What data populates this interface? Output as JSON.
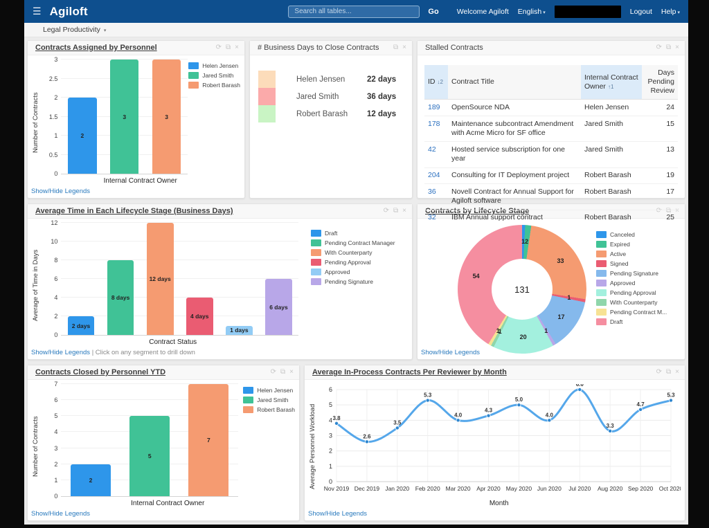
{
  "icons": {
    "menu": "☰",
    "caret": "▾",
    "refresh": "⟳",
    "popout": "⧉",
    "close": "×"
  },
  "header": {
    "brand": "Agiloft",
    "search_placeholder": "Search all tables...",
    "go": "Go",
    "welcome": "Welcome Agiloft",
    "language": "English",
    "logout": "Logout",
    "help": "Help",
    "bar_color": "#0e4f8e"
  },
  "breadcrumb": {
    "label": "Legal Productivity"
  },
  "links": {
    "show_hide": "Show/Hide Legends"
  },
  "panels": {
    "assigned": {
      "title": "Contracts Assigned by Personnel",
      "chart_data": {
        "type": "bar",
        "categories": [
          "Helen Jensen",
          "Jared Smith",
          "Robert Barash"
        ],
        "values": [
          2,
          3,
          3
        ],
        "bar_labels": [
          "2",
          "3",
          "3"
        ],
        "colors": [
          "#2e96ea",
          "#40c296",
          "#f59b71"
        ],
        "ylabel": "Number of Contracts",
        "xlabel": "Internal Contract Owner",
        "ylim": [
          0,
          3
        ],
        "ytick_step": 0.5,
        "legend": [
          "Helen Jensen",
          "Jared Smith",
          "Robert Barash"
        ],
        "legend_position": "inside-top-right"
      }
    },
    "business_days": {
      "title": "# Business Days to Close Contracts",
      "rows": [
        {
          "label": "Helen Jensen",
          "value": "22 days",
          "color": "#fcdcba"
        },
        {
          "label": "Jared Smith",
          "value": "36 days",
          "color": "#fbaaaa"
        },
        {
          "label": "Robert Barash",
          "value": "12 days",
          "color": "#c9f4c4"
        }
      ]
    },
    "stalled": {
      "title": "Stalled Contracts",
      "table": {
        "columns": [
          {
            "label": "ID",
            "sort_badge": "↓2",
            "sorted": true
          },
          {
            "label": "Contract Title",
            "sort_badge": "",
            "sorted": false
          },
          {
            "label": "Internal Contract Owner",
            "sort_badge": "↑1",
            "sorted": true
          },
          {
            "label": "Days Pending Review",
            "sort_badge": "",
            "sorted": false
          }
        ],
        "rows": [
          {
            "id": "189",
            "title": "OpenSource NDA",
            "owner": "Helen Jensen",
            "days": "24"
          },
          {
            "id": "178",
            "title": "Maintenance subcontract Amendment with Acme Micro for SF office",
            "owner": "Jared Smith",
            "days": "15"
          },
          {
            "id": "42",
            "title": "Hosted service subscription for one year",
            "owner": "Jared Smith",
            "days": "13"
          },
          {
            "id": "204",
            "title": "Consulting for IT Deployment project",
            "owner": "Robert Barash",
            "days": "19"
          },
          {
            "id": "36",
            "title": "Novell Contract for Annual Support for Agiloft software",
            "owner": "Robert Barash",
            "days": "17"
          },
          {
            "id": "32",
            "title": "IBM Annual support contract",
            "owner": "Robert Barash",
            "days": "25"
          }
        ]
      }
    },
    "lifecycle_time": {
      "title": "Average Time in Each Lifecycle Stage (Business Days)",
      "hint": "| Click on any segment to drill down",
      "chart_data": {
        "type": "bar",
        "categories": [
          "Draft",
          "Pending Contract Manager",
          "With Counterparty",
          "Pending Approval",
          "Approved",
          "Pending Signature"
        ],
        "values": [
          2,
          8,
          12,
          4,
          1,
          6
        ],
        "bar_labels": [
          "2 days",
          "8 days",
          "12 days",
          "4 days",
          "1 days",
          "6 days"
        ],
        "colors": [
          "#2e96ea",
          "#40c296",
          "#f59b71",
          "#ea5c72",
          "#92ccf5",
          "#b8a7e8"
        ],
        "ylabel": "Average of Time in Days",
        "xlabel": "Contract Status",
        "ylim": [
          0,
          12
        ],
        "ytick_step": 2,
        "legend": [
          "Draft",
          "Pending Contract Manager",
          "With Counterparty",
          "Pending Approval",
          "Approved",
          "Pending Signature"
        ],
        "legend_position": "right"
      }
    },
    "lifecycle_stage": {
      "title": "Contracts by Lifecycle Stage",
      "chart_data": {
        "type": "pie",
        "center_total": "131",
        "slices": [
          {
            "label": "Canceled",
            "value": 1,
            "color": "#2e96ea"
          },
          {
            "label": "Expired",
            "value": 2,
            "color": "#40c296"
          },
          {
            "label": "Active",
            "value": 33,
            "color": "#f59b71"
          },
          {
            "label": "Signed",
            "value": 1,
            "color": "#ea5c72"
          },
          {
            "label": "Pending Signature",
            "value": 17,
            "color": "#85b9ec"
          },
          {
            "label": "Approved",
            "value": 1,
            "color": "#b8a7e8"
          },
          {
            "label": "Pending Approval",
            "value": 20,
            "color": "#a3f0de"
          },
          {
            "label": "With Counterparty",
            "value": 1,
            "color": "#8fd6ab"
          },
          {
            "label": "Pending Contract M...",
            "value": 1,
            "color": "#f7e294"
          },
          {
            "label": "Draft",
            "value": 54,
            "color": "#f58ea0"
          }
        ]
      }
    },
    "closed_ytd": {
      "title": "Contracts Closed by Personnel YTD",
      "chart_data": {
        "type": "bar",
        "categories": [
          "Helen Jensen",
          "Jared Smith",
          "Robert Barash"
        ],
        "values": [
          2,
          5,
          7
        ],
        "bar_labels": [
          "2",
          "5",
          "7"
        ],
        "colors": [
          "#2e96ea",
          "#40c296",
          "#f59b71"
        ],
        "ylabel": "Number of Contracts",
        "xlabel": "Internal Contract Owner",
        "ylim": [
          0,
          7
        ],
        "ytick_step": 1,
        "legend": [
          "Helen Jensen",
          "Jared Smith",
          "Robert Barash"
        ],
        "legend_position": "inside-top-right"
      }
    },
    "inprocess": {
      "title": "Average In-Process Contracts Per Reviewer by Month",
      "chart_data": {
        "type": "line",
        "x": [
          "Nov 2019",
          "Dec 2019",
          "Jan 2020",
          "Feb 2020",
          "Mar 2020",
          "Apr 2020",
          "May 2020",
          "Jun 2020",
          "Jul 2020",
          "Aug 2020",
          "Sep 2020",
          "Oct 2020"
        ],
        "values": [
          3.8,
          2.6,
          3.5,
          5.3,
          4.0,
          4.3,
          5.0,
          4.0,
          6.0,
          3.3,
          4.7,
          5.3
        ],
        "point_labels": [
          "3.8",
          "2.6",
          "3.5",
          "5.3",
          "4.0",
          "4.3",
          "5.0",
          "4.0",
          "6.0",
          "3.3",
          "4.7",
          "5.3"
        ],
        "ylabel": "Average Personnel Workload",
        "xlabel": "Month",
        "ylim": [
          0,
          6
        ],
        "ytick_step": 1,
        "line_color": "#55a7ea",
        "point_color": "#2e86cf"
      }
    }
  }
}
